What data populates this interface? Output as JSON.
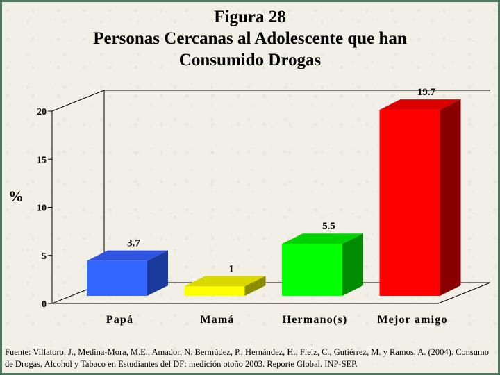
{
  "title_lines": [
    "Figura 28",
    "Personas Cercanas al Adolescente que han",
    "Consumido Drogas"
  ],
  "source_note": "Fuente: Villatoro, J., Medina-Mora, M.E., Amador, N. Bermúdez, P., Hernández, H., Fleiz, C., Gutiérrez, M. y Ramos, A. (2004). Consumo de Drogas, Alcohol y Tabaco en Estudiantes del DF: medición otoño 2003. Reporte Global. INP-SEP.",
  "chart_data": {
    "type": "bar",
    "style": "3d-column",
    "title": "Figura 28 Personas Cercanas al Adolescente que han Consumido Drogas",
    "ylabel": "%",
    "xlabel": "",
    "categories": [
      "Papá",
      "Mamá",
      "Hermano(s)",
      "Mejor amigo"
    ],
    "values": [
      3.7,
      1,
      5.5,
      19.7
    ],
    "value_labels": [
      "3.7",
      "1",
      "5.5",
      "19.7"
    ],
    "ylim": [
      0,
      20
    ],
    "yticks": [
      0,
      5,
      10,
      15,
      20
    ],
    "ytick_labels": [
      "0",
      "5",
      "10",
      "15",
      "20"
    ],
    "grid": false,
    "legend": "none",
    "colors": [
      {
        "front": "#3366ff",
        "top": "#2f55e0",
        "side": "#1a3a9c"
      },
      {
        "front": "#ffff00",
        "top": "#d9d900",
        "side": "#8c8c00"
      },
      {
        "front": "#00ff00",
        "top": "#00d200",
        "side": "#008c00"
      },
      {
        "front": "#ff0000",
        "top": "#dd0000",
        "side": "#8a0000"
      }
    ]
  }
}
